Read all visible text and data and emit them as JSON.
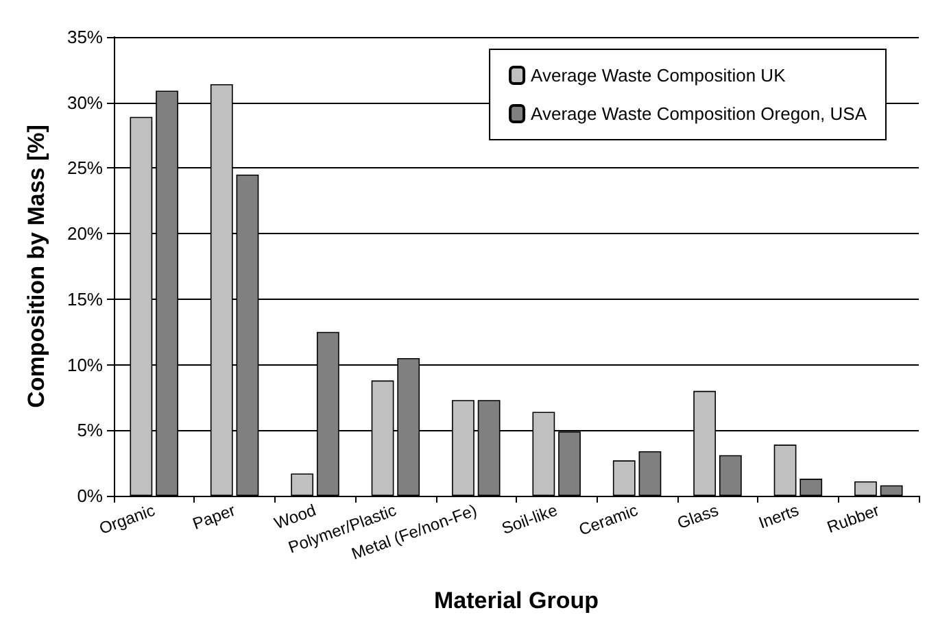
{
  "chart_data": {
    "type": "bar",
    "xlabel": "Material Group",
    "ylabel": "Composition by Mass [%]",
    "categories": [
      "Organic",
      "Paper",
      "Wood",
      "Polymer/Plastic",
      "Metal (Fe/non-Fe)",
      "Soil-like",
      "Ceramic",
      "Glass",
      "Inerts",
      "Rubber"
    ],
    "series": [
      {
        "name": "Average Waste Composition UK",
        "color": "#c0c0c0",
        "values": [
          28.9,
          31.4,
          1.7,
          8.8,
          7.3,
          6.4,
          2.7,
          8.0,
          3.9,
          1.1
        ]
      },
      {
        "name": "Average Waste Composition Oregon, USA",
        "color": "#808080",
        "values": [
          30.9,
          24.5,
          12.5,
          10.5,
          7.3,
          4.9,
          3.4,
          3.1,
          1.3,
          0.8
        ]
      }
    ],
    "ylim": [
      0,
      35
    ],
    "yticks": [
      {
        "value": 0,
        "label": "0%"
      },
      {
        "value": 5,
        "label": "5%"
      },
      {
        "value": 10,
        "label": "10%"
      },
      {
        "value": 15,
        "label": "15%"
      },
      {
        "value": 20,
        "label": "20%"
      },
      {
        "value": 25,
        "label": "25%"
      },
      {
        "value": 30,
        "label": "30%"
      },
      {
        "value": 35,
        "label": "35%"
      }
    ],
    "grid": "y",
    "legend": "top right"
  }
}
